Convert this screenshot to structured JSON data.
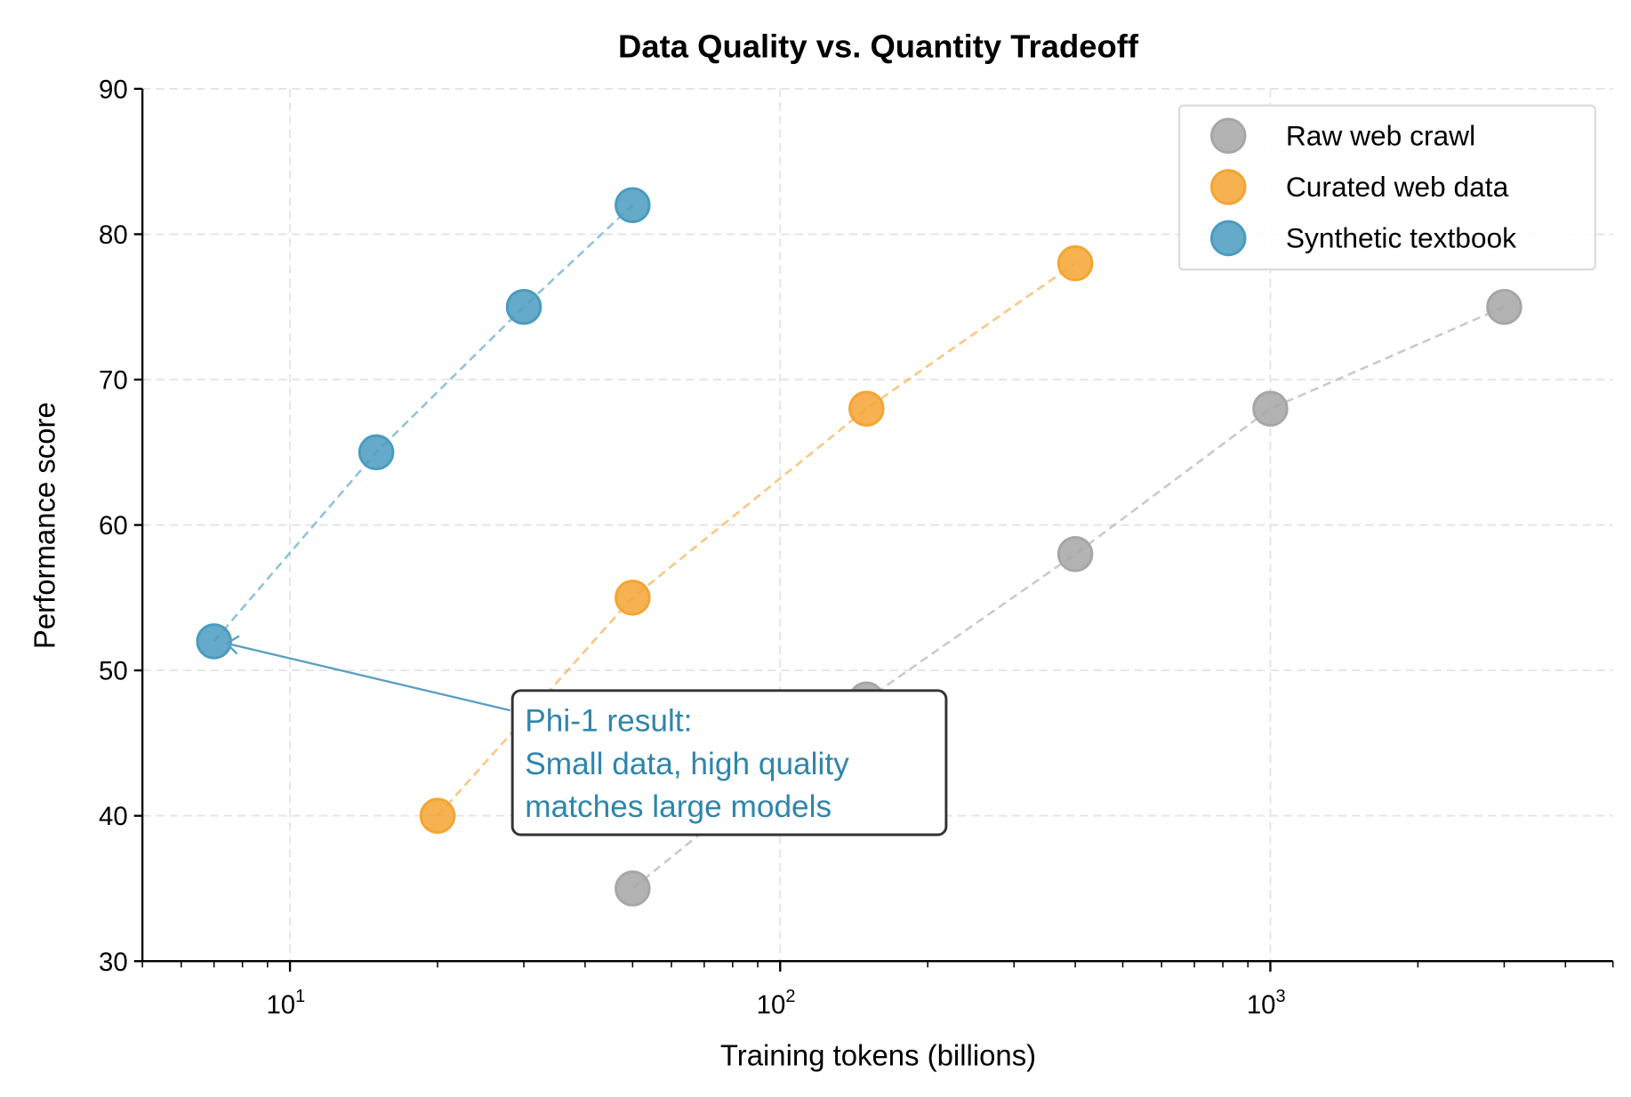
{
  "chart_data": {
    "type": "scatter",
    "title": "Data Quality vs. Quantity Tradeoff",
    "xlabel": "Training tokens (billions)",
    "ylabel": "Performance score",
    "xscale": "log",
    "xlim": [
      5,
      5000
    ],
    "ylim": [
      30,
      90
    ],
    "xticks": [
      {
        "value": 10,
        "base": "10",
        "exp": "1"
      },
      {
        "value": 100,
        "base": "10",
        "exp": "2"
      },
      {
        "value": 1000,
        "base": "10",
        "exp": "3"
      }
    ],
    "yticks": [
      "30",
      "40",
      "50",
      "60",
      "70",
      "80",
      "90"
    ],
    "grid": true,
    "legend_position": "top-right",
    "series": [
      {
        "name": "Raw web crawl",
        "color": "#a6a6a6",
        "x": [
          50,
          150,
          400,
          1000,
          3000
        ],
        "y": [
          35,
          48,
          58,
          68,
          75
        ]
      },
      {
        "name": "Curated web data",
        "color": "#f5a431",
        "x": [
          20,
          50,
          150,
          400
        ],
        "y": [
          40,
          55,
          68,
          78
        ]
      },
      {
        "name": "Synthetic textbook",
        "color": "#4a9bbf",
        "x": [
          7,
          15,
          30,
          50
        ],
        "y": [
          52,
          65,
          75,
          82
        ]
      }
    ],
    "annotation": {
      "lines": [
        "Phi-1 result:",
        "Small data, high quality",
        "matches large models"
      ],
      "target": {
        "x": 7,
        "y": 52
      },
      "color": "#2e86ab"
    }
  }
}
